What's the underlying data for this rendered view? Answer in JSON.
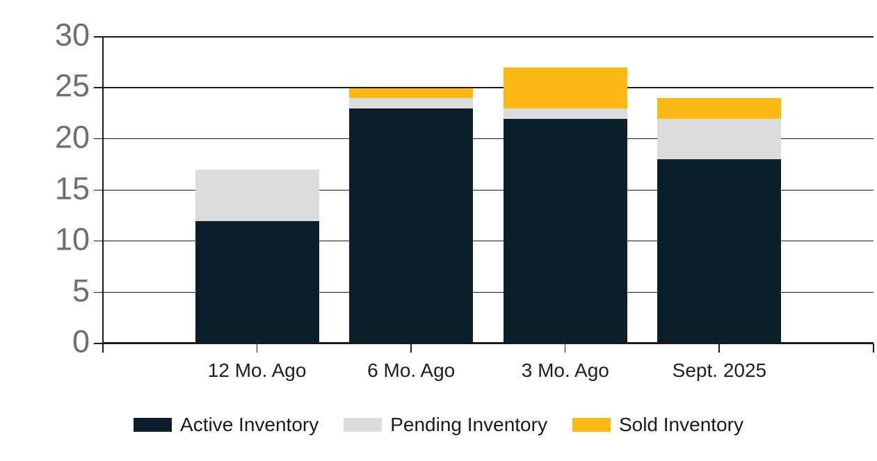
{
  "chart_data": {
    "type": "bar",
    "stacked": true,
    "title": "",
    "categories": [
      "12 Mo. Ago",
      "6 Mo. Ago",
      "3 Mo. Ago",
      "Sept. 2025"
    ],
    "series": [
      {
        "name": "Active Inventory",
        "color": "#0C1E2A",
        "values": [
          12,
          23,
          22,
          18
        ]
      },
      {
        "name": "Pending Inventory",
        "color": "#DCDCDC",
        "values": [
          5,
          1,
          1,
          4
        ]
      },
      {
        "name": "Sold Inventory",
        "color": "#FCB813",
        "values": [
          0,
          1,
          4,
          2
        ]
      }
    ],
    "y_axis": {
      "min": 0,
      "max": 30,
      "step": 5,
      "ticks": [
        0,
        5,
        10,
        15,
        20,
        25,
        30
      ]
    },
    "xlabel": "",
    "ylabel": "",
    "grid": true,
    "legend_position": "bottom"
  },
  "style": {
    "background": "#FFFFFF",
    "axis_line_color": "#1A1A1A",
    "y_label_color": "#6D6E71",
    "x_label_color": "#1F1F1F",
    "legend_text_color": "#1A1A1A"
  }
}
